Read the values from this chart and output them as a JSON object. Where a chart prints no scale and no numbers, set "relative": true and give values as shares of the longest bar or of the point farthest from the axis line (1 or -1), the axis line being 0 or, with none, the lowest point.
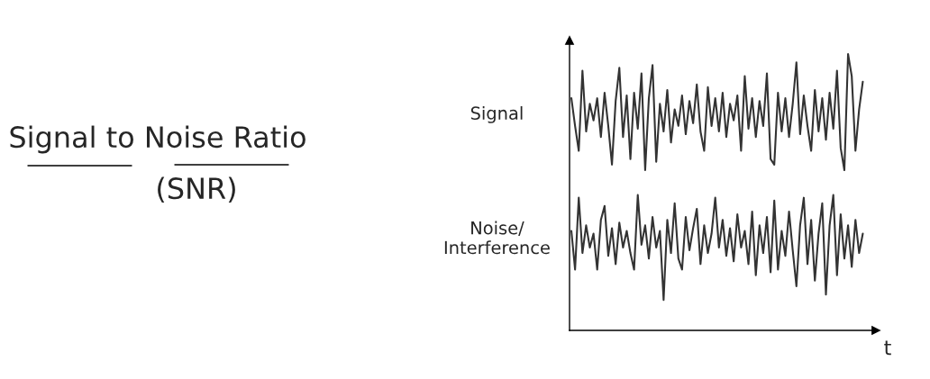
{
  "chart_data": {
    "type": "line",
    "title": "Signal to Noise Ratio",
    "subtitle": "(SNR)",
    "xlabel": "t",
    "relative": true,
    "legend": false,
    "grid": false,
    "marker": "none",
    "line_style": "solid",
    "categories": [
      null,
      null,
      null,
      null,
      null,
      null,
      null,
      null,
      null,
      null,
      null,
      null,
      null,
      null,
      null,
      null,
      null,
      null,
      null,
      null,
      null,
      null,
      null,
      null,
      null,
      null,
      null,
      null,
      null,
      null,
      null,
      null,
      null,
      null,
      null,
      null,
      null,
      null,
      null,
      null,
      null,
      null,
      null,
      null,
      null,
      null,
      null,
      null,
      null,
      null,
      null,
      null,
      null,
      null,
      null,
      null,
      null,
      null,
      null,
      null,
      null,
      null,
      null,
      null,
      null,
      null,
      null,
      null,
      null,
      null,
      null,
      null,
      null,
      null,
      null,
      null,
      null,
      null,
      null,
      null
    ],
    "series": [
      {
        "name": "Signal",
        "color": "#333333",
        "values": [
          0.84,
          0.74,
          0.65,
          0.94,
          0.72,
          0.82,
          0.76,
          0.84,
          0.7,
          0.86,
          0.74,
          0.6,
          0.83,
          0.95,
          0.7,
          0.85,
          0.62,
          0.86,
          0.73,
          0.93,
          0.58,
          0.84,
          0.96,
          0.61,
          0.82,
          0.72,
          0.87,
          0.68,
          0.8,
          0.74,
          0.85,
          0.71,
          0.83,
          0.75,
          0.89,
          0.72,
          0.65,
          0.88,
          0.74,
          0.84,
          0.72,
          0.86,
          0.7,
          0.82,
          0.76,
          0.85,
          0.65,
          0.92,
          0.73,
          0.84,
          0.7,
          0.83,
          0.74,
          0.93,
          0.62,
          0.6,
          0.86,
          0.72,
          0.84,
          0.7,
          0.82,
          0.97,
          0.71,
          0.85,
          0.74,
          0.65,
          0.87,
          0.72,
          0.84,
          0.69,
          0.86,
          0.73,
          0.94,
          0.66,
          0.58,
          1.0,
          0.92,
          0.65,
          0.8,
          0.9
        ]
      },
      {
        "name": "Noise/\nInterference",
        "color": "#333333",
        "values": [
          0.36,
          0.22,
          0.48,
          0.28,
          0.38,
          0.3,
          0.35,
          0.22,
          0.4,
          0.45,
          0.27,
          0.37,
          0.24,
          0.39,
          0.3,
          0.36,
          0.28,
          0.22,
          0.49,
          0.31,
          0.38,
          0.26,
          0.41,
          0.3,
          0.36,
          0.11,
          0.4,
          0.28,
          0.46,
          0.26,
          0.22,
          0.41,
          0.29,
          0.37,
          0.44,
          0.24,
          0.38,
          0.28,
          0.35,
          0.48,
          0.3,
          0.4,
          0.27,
          0.37,
          0.25,
          0.42,
          0.3,
          0.36,
          0.24,
          0.43,
          0.2,
          0.38,
          0.28,
          0.41,
          0.21,
          0.47,
          0.22,
          0.36,
          0.27,
          0.43,
          0.29,
          0.16,
          0.38,
          0.48,
          0.24,
          0.4,
          0.18,
          0.35,
          0.46,
          0.13,
          0.38,
          0.49,
          0.2,
          0.42,
          0.26,
          0.38,
          0.23,
          0.4,
          0.28,
          0.35
        ]
      }
    ]
  }
}
